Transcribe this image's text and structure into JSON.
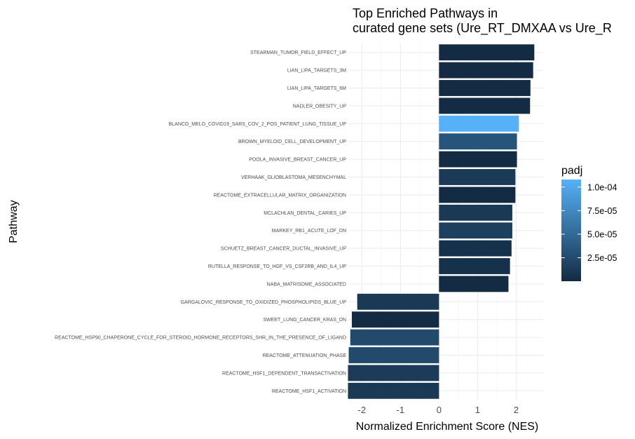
{
  "chart_data": {
    "type": "bar",
    "orientation": "horizontal",
    "title": "Top Enriched Pathways in\ncurated gene sets (Ure_RT_DMXAA vs Ure_R",
    "xlabel": "Normalized Enrichment Score (NES)",
    "ylabel": "Pathway",
    "xlim": [
      -2.35,
      2.7
    ],
    "xticks": [
      -2,
      -1,
      0,
      1,
      2
    ],
    "xtick_labels": [
      "-2",
      "-1",
      "0",
      "1",
      "2"
    ],
    "grid": true,
    "legend": {
      "title": "padj",
      "position": "right",
      "type": "colorbar",
      "range": [
        1e-07,
        0.000108
      ],
      "ticks": [
        0.0001,
        7.5e-05,
        5e-05,
        2.5e-05
      ],
      "tick_labels": [
        "1.0e-04",
        "7.5e-05",
        "5.0e-05",
        "2.5e-05"
      ],
      "color_low": "#132B43",
      "color_high": "#56B1F7"
    },
    "categories": [
      "STEARMAN_TUMOR_FIELD_EFFECT_UP",
      "LIAN_LIPA_TARGETS_3M",
      "LIAN_LIPA_TARGETS_6M",
      "NADLER_OBESITY_UP",
      "BLANCO_MELO_COVID19_SARS_COV_2_POS_PATIENT_LUNG_TISSUE_UP",
      "BROWN_MYELOID_CELL_DEVELOPMENT_UP",
      "POOLA_INVASIVE_BREAST_CANCER_UP",
      "VERHAAK_GLIOBLASTOMA_MESENCHYMAL",
      "REACTOME_EXTRACELLULAR_MATRIX_ORGANIZATION",
      "MCLACHLAN_DENTAL_CARIES_UP",
      "MARKEY_RB1_ACUTE_LOF_DN",
      "SCHUETZ_BREAST_CANCER_DUCTAL_INVASIVE_UP",
      "RUTELLA_RESPONSE_TO_HGF_VS_CSF2RB_AND_IL4_UP",
      "NABA_MATRISOME_ASSOCIATED",
      "GARGALOVIC_RESPONSE_TO_OXIDIZED_PHOSPHOLIPIDS_BLUE_UP",
      "SWEET_LUNG_CANCER_KRAS_DN",
      "REACTOME_HSP90_CHAPERONE_CYCLE_FOR_STEROID_HORMONE_RECEPTORS_SHR_IN_THE_PRESENCE_OF_LIGAND",
      "REACTOME_ATTENUATION_PHASE",
      "REACTOME_HSF1_DEPENDENT_TRANSACTIVATION",
      "REACTOME_HSF1_ACTIVATION"
    ],
    "values": [
      2.47,
      2.44,
      2.37,
      2.36,
      2.07,
      2.02,
      2.02,
      1.98,
      1.98,
      1.9,
      1.9,
      1.88,
      1.84,
      1.8,
      -2.12,
      -2.26,
      -2.3,
      -2.34,
      -2.36,
      -2.36
    ],
    "padj": [
      1e-07,
      1e-07,
      1e-07,
      1e-07,
      0.000108,
      3.3e-05,
      1e-07,
      1.2e-05,
      1e-07,
      1.1e-05,
      1.7e-05,
      5e-06,
      5e-06,
      1e-07,
      1.1e-05,
      1e-07,
      2.5e-05,
      2.5e-05,
      1.3e-05,
      1.1e-05
    ]
  }
}
